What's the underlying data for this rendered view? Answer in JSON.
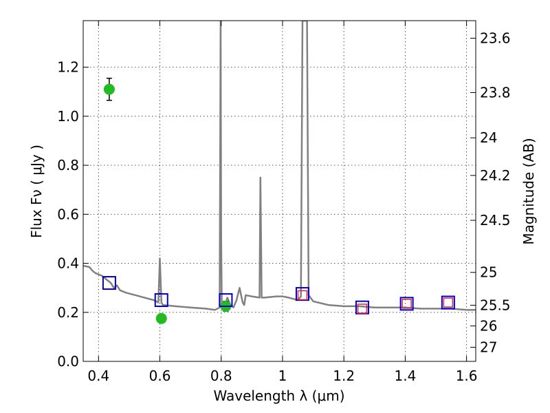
{
  "chart_data": {
    "type": "line",
    "xlabel": "Wavelength  λ (μm)",
    "ylabel": "Flux  Fν  ( μJy )",
    "ylabel_right": "Magnitude (AB)",
    "xlim": [
      0.35,
      1.63
    ],
    "ylim": [
      0.0,
      1.39
    ],
    "grid": true,
    "x_ticks": [
      {
        "value": 0.4,
        "label": "0.4"
      },
      {
        "value": 0.6,
        "label": "0.6"
      },
      {
        "value": 0.8,
        "label": "0.8"
      },
      {
        "value": 1.0,
        "label": "1"
      },
      {
        "value": 1.2,
        "label": "1.2"
      },
      {
        "value": 1.4,
        "label": "1.4"
      },
      {
        "value": 1.6,
        "label": "1.6"
      }
    ],
    "y_ticks": [
      {
        "value": 0.0,
        "label": "0.0"
      },
      {
        "value": 0.2,
        "label": "0.2"
      },
      {
        "value": 0.4,
        "label": "0.4"
      },
      {
        "value": 0.6,
        "label": "0.6"
      },
      {
        "value": 0.8,
        "label": "0.8"
      },
      {
        "value": 1.0,
        "label": "1.0"
      },
      {
        "value": 1.2,
        "label": "1.2"
      }
    ],
    "right_ticks": [
      {
        "value": 23.6,
        "label": "23.6"
      },
      {
        "value": 23.8,
        "label": "23.8"
      },
      {
        "value": 24.0,
        "label": "24"
      },
      {
        "value": 24.2,
        "label": "24.2"
      },
      {
        "value": 24.5,
        "label": "24.5"
      },
      {
        "value": 25.0,
        "label": "25"
      },
      {
        "value": 25.5,
        "label": "25.5"
      },
      {
        "value": 26.0,
        "label": "26"
      },
      {
        "value": 27.0,
        "label": "27"
      }
    ],
    "series": [
      {
        "kind": "line",
        "color": "#808080",
        "x": [
          0.35,
          0.37,
          0.38,
          0.39,
          0.41,
          0.42,
          0.43,
          0.44,
          0.45,
          0.46,
          0.47,
          0.49,
          0.52,
          0.55,
          0.58,
          0.595,
          0.6,
          0.605,
          0.61,
          0.65,
          0.7,
          0.75,
          0.78,
          0.795,
          0.798,
          0.8,
          0.802,
          0.81,
          0.82,
          0.83,
          0.84,
          0.85,
          0.86,
          0.865,
          0.87,
          0.875,
          0.88,
          0.9,
          0.925,
          0.928,
          0.932,
          0.94,
          0.98,
          1.0,
          1.02,
          1.05,
          1.06,
          1.065,
          1.07,
          1.075,
          1.08,
          1.085,
          1.1,
          1.15,
          1.2,
          1.25,
          1.3,
          1.35,
          1.4,
          1.45,
          1.5,
          1.55,
          1.6,
          1.63
        ],
        "y": [
          0.39,
          0.385,
          0.37,
          0.36,
          0.35,
          0.34,
          0.33,
          0.32,
          0.3,
          0.31,
          0.29,
          0.28,
          0.27,
          0.26,
          0.25,
          0.24,
          0.42,
          0.24,
          0.23,
          0.225,
          0.22,
          0.215,
          0.21,
          0.22,
          1.39,
          0.5,
          0.24,
          0.22,
          0.26,
          0.23,
          0.22,
          0.25,
          0.3,
          0.27,
          0.24,
          0.23,
          0.27,
          0.265,
          0.26,
          0.75,
          0.26,
          0.26,
          0.265,
          0.265,
          0.26,
          0.25,
          0.265,
          1.39,
          1.39,
          1.39,
          1.39,
          0.27,
          0.245,
          0.23,
          0.225,
          0.225,
          0.22,
          0.22,
          0.22,
          0.215,
          0.215,
          0.215,
          0.21,
          0.21
        ]
      },
      {
        "kind": "points",
        "marker": "circle",
        "color": "#22bb22",
        "x": [
          0.435,
          0.605,
          0.815
        ],
        "y": [
          1.11,
          0.175,
          0.225
        ],
        "yerr": [
          0.045,
          0.015,
          0.02
        ]
      },
      {
        "kind": "points",
        "marker": "square",
        "color": "#0000cc",
        "x": [
          0.435,
          0.605,
          0.815,
          1.065,
          1.26,
          1.405,
          1.54
        ],
        "y": [
          0.32,
          0.25,
          0.25,
          0.275,
          0.22,
          0.235,
          0.24
        ]
      },
      {
        "kind": "points",
        "marker": "square",
        "color": "#dd2244",
        "x": [
          1.065,
          1.26,
          1.405,
          1.54
        ],
        "y": [
          0.27,
          0.215,
          0.235,
          0.24
        ]
      }
    ]
  }
}
